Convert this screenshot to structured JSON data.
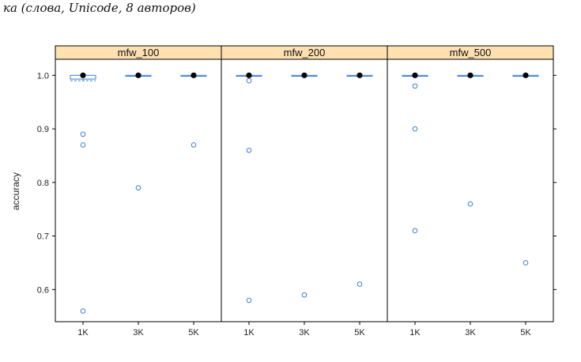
{
  "caption": "ка (слова, Unicode, 8 авторов)",
  "chart_data": {
    "type": "boxplot",
    "ylabel": "accuracy",
    "ylim": [
      0.54,
      1.03
    ],
    "yticks": [
      0.6,
      0.7,
      0.8,
      0.9,
      1.0
    ],
    "ytick_labels": [
      "0.6",
      "0.7",
      "0.8",
      "0.9",
      "1.0"
    ],
    "categories": [
      "1K",
      "3K",
      "5K"
    ],
    "colors": {
      "strip": "#ffe0b0",
      "box": "#3c7fd0",
      "median": "#000000",
      "outlier": "#3c7fd0",
      "frame": "#000000"
    },
    "panels": [
      {
        "name": "mfw_100",
        "boxes": [
          {
            "category": "1K",
            "q1": 0.993,
            "median": 1.0,
            "q3": 1.0,
            "whisker_low": 0.99,
            "whisker_high": 1.0,
            "outliers": [
              0.89,
              0.87,
              0.56
            ]
          },
          {
            "category": "3K",
            "q1": 1.0,
            "median": 1.0,
            "q3": 1.0,
            "whisker_low": 1.0,
            "whisker_high": 1.0,
            "outliers": [
              0.79
            ]
          },
          {
            "category": "5K",
            "q1": 1.0,
            "median": 1.0,
            "q3": 1.0,
            "whisker_low": 1.0,
            "whisker_high": 1.0,
            "outliers": [
              0.87
            ]
          }
        ]
      },
      {
        "name": "mfw_200",
        "boxes": [
          {
            "category": "1K",
            "q1": 1.0,
            "median": 1.0,
            "q3": 1.0,
            "whisker_low": 1.0,
            "whisker_high": 1.0,
            "outliers": [
              0.99,
              0.86,
              0.58
            ]
          },
          {
            "category": "3K",
            "q1": 1.0,
            "median": 1.0,
            "q3": 1.0,
            "whisker_low": 1.0,
            "whisker_high": 1.0,
            "outliers": [
              0.59
            ]
          },
          {
            "category": "5K",
            "q1": 1.0,
            "median": 1.0,
            "q3": 1.0,
            "whisker_low": 1.0,
            "whisker_high": 1.0,
            "outliers": [
              0.61
            ]
          }
        ]
      },
      {
        "name": "mfw_500",
        "boxes": [
          {
            "category": "1K",
            "q1": 1.0,
            "median": 1.0,
            "q3": 1.0,
            "whisker_low": 1.0,
            "whisker_high": 1.0,
            "outliers": [
              0.98,
              0.9,
              0.71
            ]
          },
          {
            "category": "3K",
            "q1": 1.0,
            "median": 1.0,
            "q3": 1.0,
            "whisker_low": 1.0,
            "whisker_high": 1.0,
            "outliers": [
              0.76
            ]
          },
          {
            "category": "5K",
            "q1": 1.0,
            "median": 1.0,
            "q3": 1.0,
            "whisker_low": 1.0,
            "whisker_high": 1.0,
            "outliers": [
              0.65
            ]
          }
        ]
      }
    ]
  }
}
